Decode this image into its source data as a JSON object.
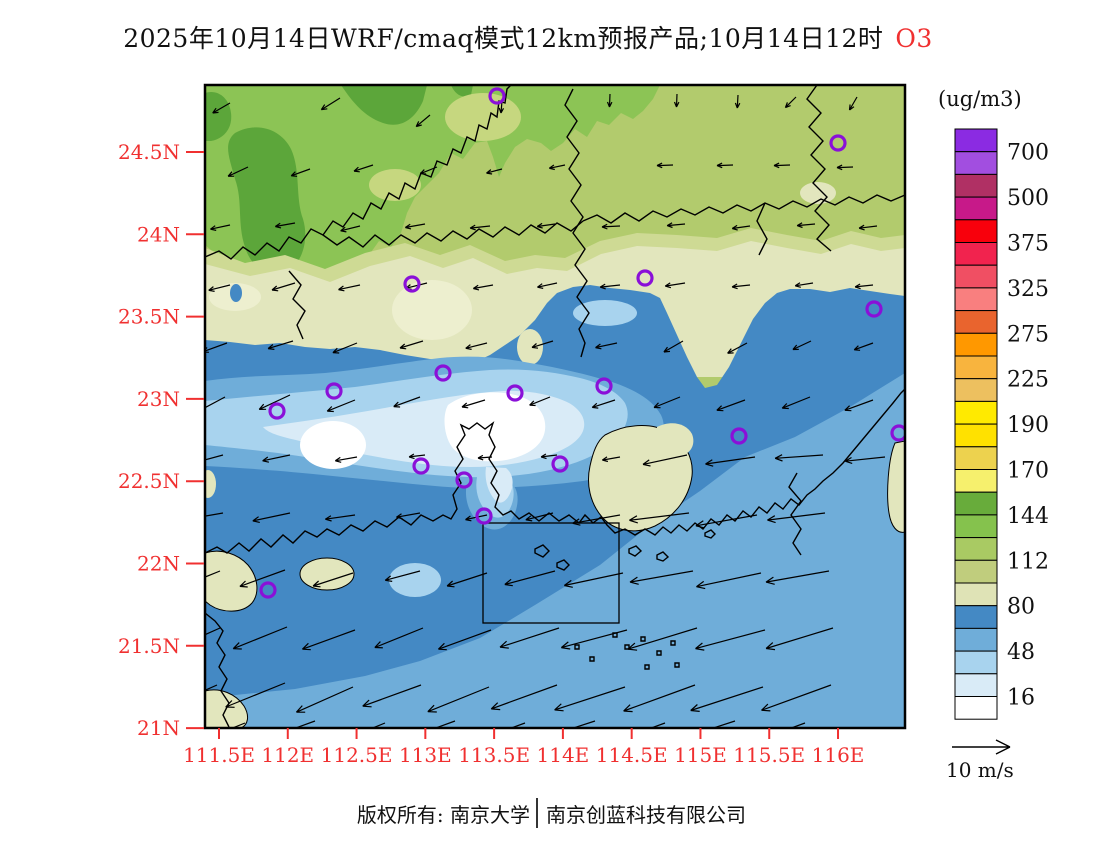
{
  "title": {
    "text": "2025年10月14日WRF/cmaq模式12km预报产品;10月14日12时",
    "species": "O3",
    "species_color": "#F03030"
  },
  "colorbar": {
    "unit_label": "(ug/m3)",
    "tick_labels": [
      "700",
      "500",
      "375",
      "325",
      "275",
      "225",
      "190",
      "170",
      "144",
      "112",
      "80",
      "48",
      "16"
    ],
    "cell_colors": [
      "#8B2BE2",
      "#A24EE0",
      "#B03064",
      "#C71989",
      "#F8000C",
      "#F1234E",
      "#F04F63",
      "#F97F7F",
      "#E9642E",
      "#FF9800",
      "#F8B43E",
      "#EDC05F",
      "#FFEA00",
      "#FFE100",
      "#EDD24E",
      "#F6F06D",
      "#68AC3B",
      "#85C24D",
      "#A9CA63",
      "#C0CD7D",
      "#DFE3B6",
      "#4489C4",
      "#6FADD9",
      "#A8D3EE",
      "#D9EBF7",
      "#FFFFFF"
    ]
  },
  "axes": {
    "lat_labels": [
      "24.5N",
      "24N",
      "23.5N",
      "23N",
      "22.5N",
      "22N",
      "21.5N",
      "21N"
    ],
    "lon_labels": [
      "111.5E",
      "112E",
      "112.5E",
      "113E",
      "113.5E",
      "114E",
      "114.5E",
      "115E",
      "115.5E",
      "116E"
    ],
    "tick_color": "#F03030"
  },
  "map_palette": {
    "base": "#B2CB6D",
    "green_mid": "#8CC455",
    "green_dark": "#5CA63A",
    "green_pale": "#C6D77F",
    "olive": "#CEDA94",
    "beige": "#E2E6BD",
    "cream": "#EDEFCF",
    "blue": "#4489C4",
    "sea": "#6FADD9",
    "blue1": "#6FADD9",
    "blue2": "#A8D3EE",
    "blue3": "#D9EBF7",
    "white": "#FFFFFF"
  },
  "stations": {
    "color": "#8A10D8",
    "points": [
      [
        292,
        11
      ],
      [
        633,
        58
      ],
      [
        207,
        199
      ],
      [
        440,
        193
      ],
      [
        669,
        224
      ],
      [
        129,
        306
      ],
      [
        238,
        288
      ],
      [
        310,
        308
      ],
      [
        399,
        301
      ],
      [
        72,
        326
      ],
      [
        534,
        351
      ],
      [
        216,
        381
      ],
      [
        259,
        395
      ],
      [
        355,
        379
      ],
      [
        279,
        431
      ],
      [
        63,
        505
      ],
      [
        694,
        348
      ]
    ]
  },
  "wind": {
    "legend_label": "10 m/s",
    "arrows": [
      [
        25,
        18,
        150,
        20
      ],
      [
        135,
        13,
        148,
        22
      ],
      [
        225,
        30,
        140,
        18
      ],
      [
        297,
        16,
        95,
        12
      ],
      [
        405,
        9,
        92,
        13
      ],
      [
        472,
        9,
        92,
        13
      ],
      [
        533,
        10,
        93,
        13
      ],
      [
        591,
        12,
        135,
        15
      ],
      [
        652,
        12,
        120,
        15
      ],
      [
        43,
        82,
        155,
        22
      ],
      [
        105,
        84,
        160,
        20
      ],
      [
        168,
        80,
        162,
        20
      ],
      [
        232,
        82,
        158,
        18
      ],
      [
        297,
        84,
        165,
        16
      ],
      [
        360,
        80,
        168,
        16
      ],
      [
        468,
        80,
        178,
        16
      ],
      [
        528,
        80,
        178,
        16
      ],
      [
        585,
        80,
        178,
        16
      ],
      [
        648,
        82,
        178,
        16
      ],
      [
        25,
        140,
        168,
        20
      ],
      [
        90,
        138,
        170,
        20
      ],
      [
        155,
        141,
        166,
        20
      ],
      [
        220,
        139,
        170,
        20
      ],
      [
        285,
        141,
        174,
        20
      ],
      [
        350,
        139,
        172,
        18
      ],
      [
        415,
        141,
        177,
        18
      ],
      [
        480,
        139,
        175,
        18
      ],
      [
        545,
        141,
        172,
        18
      ],
      [
        610,
        139,
        175,
        18
      ],
      [
        672,
        141,
        173,
        18
      ],
      [
        25,
        200,
        166,
        22
      ],
      [
        90,
        198,
        163,
        24
      ],
      [
        155,
        200,
        168,
        22
      ],
      [
        222,
        198,
        166,
        22
      ],
      [
        288,
        200,
        170,
        20
      ],
      [
        352,
        198,
        168,
        20
      ],
      [
        415,
        200,
        174,
        20
      ],
      [
        480,
        198,
        171,
        20
      ],
      [
        545,
        200,
        174,
        18
      ],
      [
        608,
        198,
        171,
        18
      ],
      [
        668,
        200,
        174,
        18
      ],
      [
        22,
        258,
        160,
        26
      ],
      [
        88,
        256,
        163,
        26
      ],
      [
        152,
        258,
        158,
        26
      ],
      [
        218,
        256,
        163,
        24
      ],
      [
        282,
        258,
        166,
        22
      ],
      [
        348,
        256,
        163,
        22
      ],
      [
        412,
        258,
        168,
        22
      ],
      [
        478,
        256,
        150,
        22
      ],
      [
        542,
        258,
        152,
        22
      ],
      [
        606,
        256,
        155,
        20
      ],
      [
        668,
        258,
        160,
        20
      ],
      [
        20,
        312,
        152,
        34
      ],
      [
        85,
        310,
        155,
        34
      ],
      [
        150,
        315,
        158,
        30
      ],
      [
        215,
        312,
        160,
        28
      ],
      [
        280,
        315,
        163,
        24
      ],
      [
        345,
        312,
        158,
        22
      ],
      [
        410,
        315,
        162,
        24
      ],
      [
        475,
        312,
        158,
        28
      ],
      [
        540,
        315,
        160,
        30
      ],
      [
        605,
        312,
        158,
        30
      ],
      [
        668,
        315,
        160,
        30
      ],
      [
        18,
        370,
        165,
        32
      ],
      [
        85,
        370,
        168,
        28
      ],
      [
        152,
        372,
        170,
        22
      ],
      [
        220,
        370,
        173,
        16
      ],
      [
        287,
        372,
        176,
        14
      ],
      [
        352,
        370,
        173,
        16
      ],
      [
        415,
        372,
        170,
        18
      ],
      [
        482,
        370,
        168,
        45
      ],
      [
        550,
        372,
        172,
        50
      ],
      [
        618,
        370,
        176,
        48
      ],
      [
        680,
        372,
        174,
        40
      ],
      [
        18,
        428,
        170,
        40
      ],
      [
        85,
        428,
        168,
        38
      ],
      [
        150,
        430,
        172,
        30
      ],
      [
        215,
        428,
        170,
        24
      ],
      [
        282,
        430,
        168,
        22
      ],
      [
        348,
        428,
        166,
        28
      ],
      [
        415,
        430,
        170,
        48
      ],
      [
        484,
        428,
        173,
        60
      ],
      [
        552,
        430,
        170,
        62
      ],
      [
        620,
        428,
        173,
        58
      ],
      [
        15,
        486,
        158,
        46
      ],
      [
        80,
        485,
        160,
        48
      ],
      [
        148,
        488,
        162,
        42
      ],
      [
        215,
        486,
        165,
        36
      ],
      [
        282,
        488,
        162,
        42
      ],
      [
        350,
        486,
        165,
        52
      ],
      [
        418,
        488,
        168,
        60
      ],
      [
        488,
        486,
        170,
        64
      ],
      [
        556,
        488,
        168,
        66
      ],
      [
        624,
        486,
        170,
        64
      ],
      [
        15,
        543,
        156,
        56
      ],
      [
        82,
        542,
        158,
        58
      ],
      [
        150,
        545,
        160,
        56
      ],
      [
        218,
        543,
        158,
        52
      ],
      [
        286,
        545,
        160,
        56
      ],
      [
        354,
        543,
        162,
        62
      ],
      [
        422,
        545,
        165,
        68
      ],
      [
        492,
        543,
        163,
        72
      ],
      [
        560,
        545,
        165,
        72
      ],
      [
        628,
        543,
        163,
        70
      ],
      [
        12,
        600,
        156,
        62
      ],
      [
        80,
        598,
        158,
        64
      ],
      [
        148,
        602,
        156,
        62
      ],
      [
        216,
        600,
        160,
        62
      ],
      [
        284,
        602,
        158,
        66
      ],
      [
        352,
        600,
        160,
        70
      ],
      [
        420,
        602,
        162,
        74
      ],
      [
        490,
        600,
        160,
        76
      ],
      [
        558,
        602,
        162,
        76
      ],
      [
        626,
        600,
        160,
        74
      ],
      [
        40,
        638,
        158,
        60
      ],
      [
        110,
        636,
        160,
        62
      ],
      [
        180,
        638,
        158,
        62
      ],
      [
        250,
        636,
        160,
        64
      ],
      [
        320,
        638,
        160,
        66
      ],
      [
        390,
        636,
        162,
        68
      ],
      [
        460,
        638,
        160,
        70
      ],
      [
        530,
        636,
        162,
        70
      ],
      [
        600,
        638,
        160,
        68
      ]
    ]
  },
  "footer": {
    "owner": "版权所有: 南京大学",
    "company": "南京创蓝科技有限公司"
  }
}
